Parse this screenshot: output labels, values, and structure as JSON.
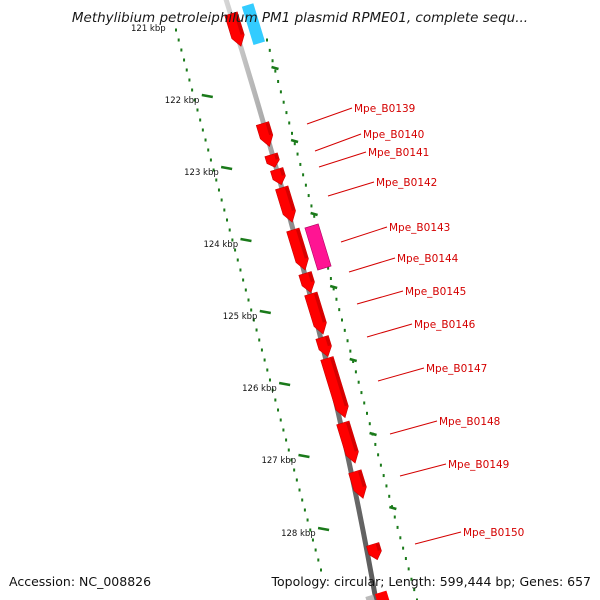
{
  "title": "Methylibium petroleiphilum PM1 plasmid RPME01, complete sequ...",
  "footer": {
    "accession": "Accession: NC_008826",
    "topology": "Topology: circular; Length: 599,444 bp; Genes: 657"
  },
  "ruler": {
    "partial_top_label": "121 kbp",
    "labels": [
      "122 kbp",
      "123 kbp",
      "124 kbp",
      "125 kbp",
      "126 kbp",
      "127 kbp",
      "128 kbp"
    ]
  },
  "genes": [
    {
      "label": "Mpe_B0139",
      "color": "#ff0000"
    },
    {
      "label": "Mpe_B0140",
      "color": "#ff0000"
    },
    {
      "label": "Mpe_B0141",
      "color": "#ff0000"
    },
    {
      "label": "Mpe_B0142",
      "color": "#ff0000"
    },
    {
      "label": "Mpe_B0143",
      "color": "#ff0000"
    },
    {
      "label": "Mpe_B0144",
      "color": "#ff0000"
    },
    {
      "label": "Mpe_B0145",
      "color": "#ff0000"
    },
    {
      "label": "Mpe_B0146",
      "color": "#ff0000"
    },
    {
      "label": "Mpe_B0147",
      "color": "#ff0000"
    },
    {
      "label": "Mpe_B0148",
      "color": "#ff0000"
    },
    {
      "label": "Mpe_B0149",
      "color": "#ff0000"
    },
    {
      "label": "Mpe_B0150",
      "color": "#ff0000"
    }
  ],
  "colors": {
    "cds": "#ff0000",
    "cds_dark": "#c80000",
    "rna": "#ff1493",
    "other_feature": "#33ccff",
    "backbone": "#8c8c8c",
    "ruler_ticks": "#1a7a1a",
    "label_text": "#d40000"
  }
}
